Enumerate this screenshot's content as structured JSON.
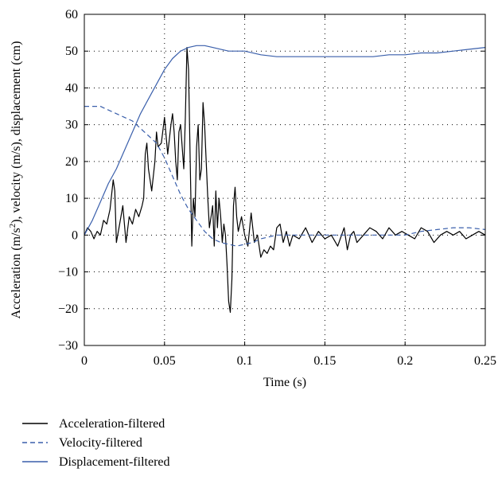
{
  "chart_data": {
    "type": "line",
    "xlabel": "Time (s)",
    "ylabel": "Acceleration (m/s²), velocity (m/s), displacement (cm)",
    "ylabel_parts": {
      "a": "Acceleration (m/s",
      "sup": "2",
      "b": "), velocity (m/s), displacement (cm)"
    },
    "xlim": [
      0,
      0.25
    ],
    "ylim": [
      -30,
      60
    ],
    "xticks": [
      0,
      0.05,
      0.1,
      0.15,
      0.2,
      0.25
    ],
    "xtick_labels": [
      "0",
      "0.05",
      "0.1",
      "0.15",
      "0.2",
      "0.25"
    ],
    "yticks": [
      -30,
      -20,
      -10,
      0,
      10,
      20,
      30,
      40,
      50,
      60
    ],
    "ytick_labels": [
      "−30",
      "−20",
      "−10",
      "0",
      "10",
      "20",
      "30",
      "40",
      "50",
      "60"
    ],
    "grid": true,
    "legend_position": "below-left",
    "series": [
      {
        "name": "Acceleration-filtered",
        "color": "#000000",
        "style": "solid",
        "x": [
          0,
          0.002,
          0.004,
          0.006,
          0.008,
          0.01,
          0.012,
          0.014,
          0.016,
          0.018,
          0.019,
          0.02,
          0.022,
          0.024,
          0.026,
          0.028,
          0.03,
          0.032,
          0.034,
          0.036,
          0.037,
          0.038,
          0.039,
          0.04,
          0.042,
          0.044,
          0.045,
          0.046,
          0.048,
          0.05,
          0.052,
          0.054,
          0.055,
          0.056,
          0.057,
          0.058,
          0.059,
          0.06,
          0.061,
          0.062,
          0.063,
          0.064,
          0.065,
          0.066,
          0.067,
          0.068,
          0.069,
          0.07,
          0.071,
          0.072,
          0.073,
          0.074,
          0.075,
          0.076,
          0.077,
          0.078,
          0.079,
          0.08,
          0.081,
          0.082,
          0.083,
          0.084,
          0.085,
          0.086,
          0.087,
          0.088,
          0.089,
          0.09,
          0.091,
          0.092,
          0.093,
          0.094,
          0.095,
          0.096,
          0.098,
          0.1,
          0.102,
          0.104,
          0.106,
          0.108,
          0.11,
          0.112,
          0.114,
          0.116,
          0.118,
          0.12,
          0.122,
          0.124,
          0.126,
          0.128,
          0.13,
          0.134,
          0.138,
          0.142,
          0.146,
          0.15,
          0.154,
          0.158,
          0.162,
          0.164,
          0.166,
          0.168,
          0.17,
          0.174,
          0.178,
          0.182,
          0.186,
          0.19,
          0.194,
          0.198,
          0.202,
          0.206,
          0.21,
          0.214,
          0.218,
          0.222,
          0.226,
          0.23,
          0.234,
          0.238,
          0.242,
          0.246,
          0.25
        ],
        "y": [
          0,
          2,
          1,
          -1,
          1,
          0,
          4,
          3,
          7,
          15,
          12,
          -2,
          3,
          8,
          -2,
          5,
          3,
          7,
          5,
          8,
          10,
          22,
          25,
          18,
          12,
          20,
          28,
          24,
          25,
          32,
          22,
          30,
          33,
          28,
          20,
          15,
          28,
          30,
          24,
          18,
          32,
          51,
          45,
          20,
          -3,
          10,
          5,
          24,
          30,
          15,
          18,
          36,
          30,
          20,
          10,
          2,
          5,
          8,
          -3,
          12,
          2,
          10,
          5,
          -2,
          3,
          0,
          -8,
          -18,
          -21,
          -12,
          8,
          13,
          5,
          1,
          5,
          0,
          -3,
          6,
          -2,
          0,
          -6,
          -4,
          -5,
          -3,
          -4,
          2,
          3,
          -2,
          1,
          -3,
          0,
          -1,
          2,
          -2,
          1,
          -1,
          0,
          -3,
          2,
          -4,
          0,
          1,
          -2,
          0,
          2,
          1,
          -1,
          2,
          0,
          1,
          0,
          -1,
          2,
          1,
          -2,
          0,
          1,
          0,
          1,
          -1,
          0,
          1,
          0
        ]
      },
      {
        "name": "Velocity-filtered",
        "color": "#3a5fab",
        "style": "dashed",
        "x": [
          0,
          0.005,
          0.01,
          0.015,
          0.02,
          0.025,
          0.03,
          0.035,
          0.04,
          0.045,
          0.05,
          0.055,
          0.06,
          0.065,
          0.07,
          0.075,
          0.08,
          0.085,
          0.09,
          0.095,
          0.1,
          0.105,
          0.11,
          0.12,
          0.13,
          0.14,
          0.15,
          0.16,
          0.17,
          0.18,
          0.19,
          0.2,
          0.21,
          0.22,
          0.23,
          0.24,
          0.25
        ],
        "y": [
          35,
          35,
          35,
          34,
          33,
          32,
          31,
          29,
          27,
          25,
          21,
          16,
          11,
          7,
          4,
          1,
          -1,
          -2,
          -2.5,
          -3,
          -2.5,
          -2,
          -1,
          0,
          0,
          0,
          0,
          0,
          0,
          0,
          0,
          0,
          1,
          1.5,
          2,
          2,
          1.5
        ]
      },
      {
        "name": "Displacement-filtered",
        "color": "#3a5fab",
        "style": "solid",
        "x": [
          0,
          0.005,
          0.01,
          0.015,
          0.02,
          0.025,
          0.03,
          0.035,
          0.04,
          0.045,
          0.05,
          0.055,
          0.06,
          0.065,
          0.07,
          0.075,
          0.08,
          0.085,
          0.09,
          0.095,
          0.1,
          0.11,
          0.12,
          0.13,
          0.14,
          0.15,
          0.16,
          0.17,
          0.18,
          0.19,
          0.2,
          0.21,
          0.22,
          0.23,
          0.24,
          0.25
        ],
        "y": [
          0,
          4,
          9,
          14,
          18,
          23,
          28,
          33,
          37,
          41,
          45,
          48,
          50,
          51,
          51.5,
          51.5,
          51,
          50.5,
          50,
          50,
          50,
          49,
          48.5,
          48.5,
          48.5,
          48.5,
          48.5,
          48.5,
          48.5,
          49,
          49,
          49.5,
          49.5,
          50,
          50.5,
          51
        ]
      }
    ]
  }
}
